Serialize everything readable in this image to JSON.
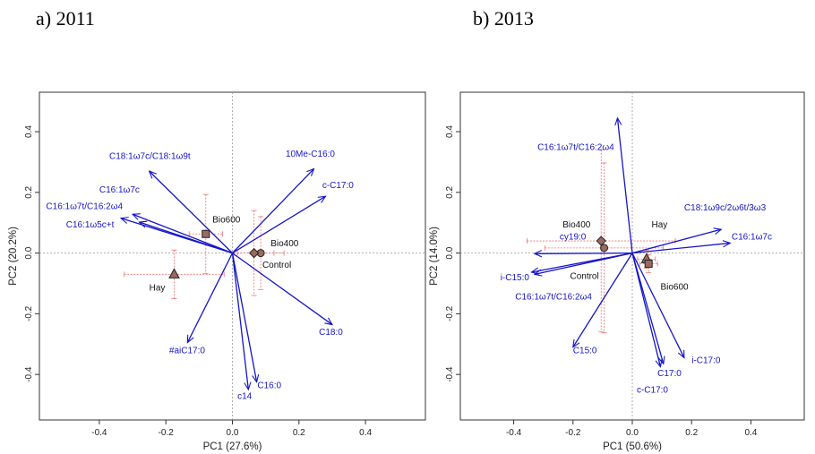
{
  "panels": [
    {
      "title": "a)   2011"
    },
    {
      "title": "b) 2013"
    }
  ],
  "chart_data": [
    {
      "type": "scatter",
      "title": "a)   2011",
      "xlabel": "PC1 (27.6%)",
      "ylabel": "PC2 (20.2%)",
      "xlim": [
        -0.58,
        0.58
      ],
      "ylim": [
        -0.55,
        0.53
      ],
      "xticks": [
        -0.4,
        -0.2,
        0.0,
        0.2,
        0.4
      ],
      "yticks": [
        -0.4,
        -0.2,
        0.0,
        0.2,
        0.4
      ],
      "grid": false,
      "vectors": [
        {
          "label": "10Me-C16:0",
          "x": 0.245,
          "y": 0.278,
          "lx": 0.16,
          "ly": 0.318,
          "anchor": "start"
        },
        {
          "label": "c-C17:0",
          "x": 0.28,
          "y": 0.187,
          "lx": 0.27,
          "ly": 0.214,
          "anchor": "start"
        },
        {
          "label": "C18:1ω7c/C18:1ω9t",
          "x": -0.25,
          "y": 0.27,
          "lx": -0.37,
          "ly": 0.31,
          "anchor": "start"
        },
        {
          "label": "C16:1ω7c",
          "x": -0.3,
          "y": 0.128,
          "lx": -0.4,
          "ly": 0.2,
          "anchor": "start"
        },
        {
          "label": "C16:1ω7t/C16:2ω4",
          "x": -0.335,
          "y": 0.115,
          "lx": -0.56,
          "ly": 0.145,
          "anchor": "start"
        },
        {
          "label": "C16:1ω5c+t",
          "x": -0.28,
          "y": 0.102,
          "lx": -0.5,
          "ly": 0.085,
          "anchor": "start"
        },
        {
          "label": "C18:0",
          "x": 0.3,
          "y": -0.236,
          "lx": 0.26,
          "ly": -0.27,
          "anchor": "start"
        },
        {
          "label": "#aiC17:0",
          "x": -0.135,
          "y": -0.295,
          "lx": -0.19,
          "ly": -0.33,
          "anchor": "start"
        },
        {
          "label": "C16:0",
          "x": 0.073,
          "y": -0.425,
          "lx": 0.075,
          "ly": -0.445,
          "anchor": "start"
        },
        {
          "label": "c14",
          "x": 0.048,
          "y": -0.45,
          "lx": 0.015,
          "ly": -0.48,
          "anchor": "start"
        }
      ],
      "points": [
        {
          "label": "Bio600",
          "shape": "square",
          "x": -0.08,
          "y": 0.063,
          "sx": 0.05,
          "sy": 0.13,
          "lx": -0.06,
          "ly": 0.1,
          "anchor": "start"
        },
        {
          "label": "Bio400",
          "shape": "circle",
          "x": 0.085,
          "y": 0.0,
          "sx": 0.07,
          "sy": 0.12,
          "lx": 0.115,
          "ly": 0.022,
          "anchor": "start"
        },
        {
          "label": "Control",
          "shape": "diamond",
          "x": 0.065,
          "y": 0.0,
          "sx": 0.06,
          "sy": 0.14,
          "lx": 0.09,
          "ly": -0.048,
          "anchor": "start"
        },
        {
          "label": "Hay",
          "shape": "triangle",
          "x": -0.175,
          "y": -0.07,
          "sx": 0.15,
          "sy": 0.08,
          "lx": -0.25,
          "ly": -0.123,
          "anchor": "start"
        }
      ]
    },
    {
      "type": "scatter",
      "title": "b) 2013",
      "xlabel": "PC1 (50.6%)",
      "ylabel": "PC2 (14.0%)",
      "xlim": [
        -0.58,
        0.58
      ],
      "ylim": [
        -0.55,
        0.53
      ],
      "xticks": [
        -0.4,
        -0.2,
        0.0,
        0.2,
        0.4
      ],
      "yticks": [
        -0.4,
        -0.2,
        0.0,
        0.2,
        0.4
      ],
      "grid": false,
      "vectors": [
        {
          "label": "C16:1ω7t/C16:2ω4",
          "x": -0.05,
          "y": 0.445,
          "lx": -0.32,
          "ly": 0.34,
          "anchor": "start"
        },
        {
          "label": "C18:1ω9c/2ω6t/3ω3",
          "x": 0.3,
          "y": 0.078,
          "lx": 0.175,
          "ly": 0.14,
          "anchor": "start"
        },
        {
          "label": "C16:1ω7c",
          "x": 0.33,
          "y": 0.033,
          "lx": 0.335,
          "ly": 0.045,
          "anchor": "start"
        },
        {
          "label": "cy19:0",
          "x": -0.33,
          "y": -0.002,
          "lx": -0.245,
          "ly": 0.045,
          "anchor": "start"
        },
        {
          "label": "i-C15:0",
          "x": -0.34,
          "y": -0.063,
          "lx": -0.445,
          "ly": -0.09,
          "anchor": "start"
        },
        {
          "label": "C16:1ω7t/C16:2ω4",
          "x": -0.33,
          "y": -0.07,
          "lx": -0.395,
          "ly": -0.153,
          "anchor": "start"
        },
        {
          "label": "C15:0",
          "x": -0.2,
          "y": -0.31,
          "lx": -0.2,
          "ly": -0.33,
          "anchor": "start"
        },
        {
          "label": "C17:0",
          "x": 0.105,
          "y": -0.365,
          "lx": 0.085,
          "ly": -0.405,
          "anchor": "start"
        },
        {
          "label": "i-C17:0",
          "x": 0.175,
          "y": -0.345,
          "lx": 0.2,
          "ly": -0.363,
          "anchor": "start"
        },
        {
          "label": "c-C17:0",
          "x": 0.095,
          "y": -0.375,
          "lx": 0.015,
          "ly": -0.46,
          "anchor": "start"
        }
      ],
      "points": [
        {
          "label": "Bio400",
          "shape": "diamond",
          "x": -0.105,
          "y": 0.04,
          "sx": 0.25,
          "sy": 0.3,
          "lx": -0.235,
          "ly": 0.085,
          "anchor": "start"
        },
        {
          "label": "Control",
          "shape": "circle",
          "x": -0.095,
          "y": 0.017,
          "sx": 0.2,
          "sy": 0.28,
          "lx": -0.21,
          "ly": -0.085,
          "anchor": "start"
        },
        {
          "label": "Hay",
          "shape": "triangle",
          "x": 0.048,
          "y": -0.02,
          "sx": 0.03,
          "sy": 0.03,
          "lx": 0.065,
          "ly": 0.085,
          "anchor": "start"
        },
        {
          "label": "Bio600",
          "shape": "square",
          "x": 0.055,
          "y": -0.035,
          "sx": 0.03,
          "sy": 0.03,
          "lx": 0.095,
          "ly": -0.12,
          "anchor": "start"
        }
      ]
    }
  ]
}
